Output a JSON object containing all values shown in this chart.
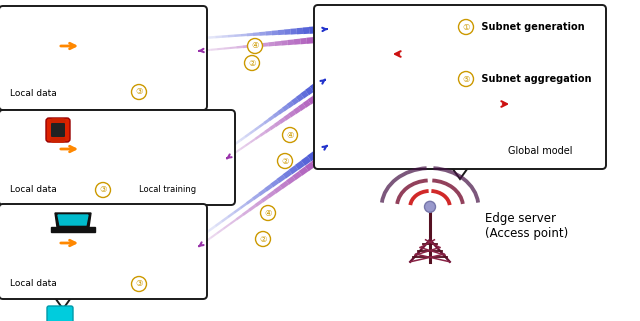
{
  "fig_width": 6.4,
  "fig_height": 3.21,
  "dpi": 100,
  "bg_color": "#ffffff",
  "node_colors": {
    "red": "#cc2222",
    "purple": "#8833aa",
    "blue": "#2233bb",
    "gold": "#cc9900"
  },
  "line_color": "#888888",
  "arrow_color_blue": "#2233cc",
  "arrow_color_purple": "#9933aa",
  "orange_arrow": "#ff8800",
  "box_edge_color": "#222222",
  "gold_circle_color": "#cc9900",
  "labels": {
    "local_data": "Local data",
    "local_training": "Local training",
    "global_model": "Global model",
    "edge_server": "Edge server\n(Access point)",
    "subnet_gen": " Subnet generation",
    "subnet_agg": " Subnet aggregation",
    "num1": "①",
    "num2": "②",
    "num3": "③",
    "num4": "④",
    "num5": "⑤"
  }
}
